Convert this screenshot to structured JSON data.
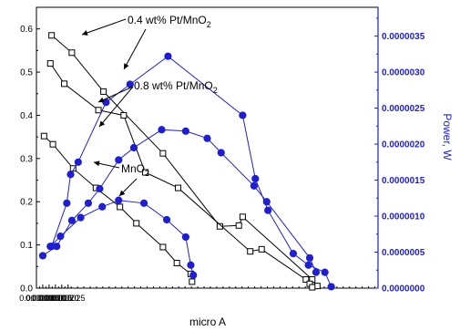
{
  "chart_data": {
    "type": "scatter",
    "x": {
      "label": "micro A",
      "range": [
        0,
        0.00027
      ],
      "ticks": [
        "0.000000",
        "0.000005",
        "0.000010",
        "0.000015",
        "0.000020",
        "0.000025"
      ]
    },
    "y_left": {
      "label": "",
      "range": [
        0,
        0.65
      ],
      "ticks": [
        "0.0",
        "0.1",
        "0.2",
        "0.3",
        "0.4",
        "0.5",
        "0.6"
      ]
    },
    "y_right": {
      "label": "Power, W",
      "range": [
        0,
        3.9e-06
      ],
      "ticks": [
        "0.0000000",
        "0.0000005",
        "0.0000010",
        "0.0000015",
        "0.0000020",
        "0.0000025",
        "0.0000030",
        "0.0000035"
      ]
    },
    "colors": {
      "voltage": "#000000",
      "power": "#1f1fcf"
    },
    "annotations": [
      {
        "main": "0.4 wt% Pt/MnO",
        "sub": "2"
      },
      {
        "main": "0.8 wt% Pt/MnO",
        "sub": "2"
      },
      {
        "main": "MnO",
        "sub": "2"
      }
    ],
    "series": [
      {
        "axis": "left",
        "marker": "square-open",
        "color": "#000000",
        "points": [
          [
            1.2e-05,
            0.585
          ],
          [
            2.8e-05,
            0.545
          ],
          [
            5.3e-05,
            0.455
          ],
          [
            0.0001,
            0.312
          ],
          [
            0.000145,
            0.143
          ],
          [
            0.00016,
            0.145
          ],
          [
            0.000163,
            0.165
          ],
          [
            0.000218,
            0.02
          ],
          [
            0.000222,
            0.005
          ]
        ]
      },
      {
        "axis": "left",
        "marker": "square-open",
        "color": "#000000",
        "points": [
          [
            1.1e-05,
            0.52
          ],
          [
            2.2e-05,
            0.473
          ],
          [
            4.9e-05,
            0.412
          ],
          [
            6.9e-05,
            0.4
          ],
          [
            8.6e-05,
            0.268
          ],
          [
            0.000112,
            0.232
          ],
          [
            0.000169,
            0.085
          ],
          [
            0.000178,
            0.09
          ],
          [
            0.000213,
            0.02
          ],
          [
            0.000216,
            0.01
          ],
          [
            0.000218,
            0.002
          ]
        ]
      },
      {
        "axis": "left",
        "marker": "square-open",
        "color": "#000000",
        "points": [
          [
            6e-06,
            0.352
          ],
          [
            1.3e-05,
            0.333
          ],
          [
            2.9e-05,
            0.277
          ],
          [
            4.7e-05,
            0.232
          ],
          [
            6.6e-05,
            0.188
          ],
          [
            7.9e-05,
            0.15
          ],
          [
            0.0001,
            0.095
          ],
          [
            0.000111,
            0.058
          ],
          [
            0.000122,
            0.033
          ],
          [
            0.000123,
            0.015
          ]
        ]
      },
      {
        "axis": "right",
        "marker": "circle-filled",
        "color": "#1f1fcf",
        "points": [
          [
            1.2e-05,
            5.8e-07
          ],
          [
            2.4e-05,
            1.18e-06
          ],
          [
            2.7e-05,
            1.58e-06
          ],
          [
            3.3e-05,
            1.75e-06
          ],
          [
            5.5e-05,
            2.58e-06
          ],
          [
            7.4e-05,
            2.83e-06
          ],
          [
            0.000104,
            3.22e-06
          ],
          [
            0.000163,
            2.4e-06
          ],
          [
            0.000173,
            1.52e-06
          ],
          [
            0.000183,
            1.08e-06
          ],
          [
            0.000203,
            4.8e-07
          ],
          [
            0.000215,
            3.2e-07
          ],
          [
            0.000228,
            2.2e-07
          ],
          [
            0.000233,
            2e-08
          ]
        ]
      },
      {
        "axis": "right",
        "marker": "circle-filled",
        "color": "#1f1fcf",
        "points": [
          [
            5e-06,
            4.5e-07
          ],
          [
            1.6e-05,
            5.8e-07
          ],
          [
            2.8e-05,
            9.4e-07
          ],
          [
            4.1e-05,
            1.18e-06
          ],
          [
            5e-05,
            1.38e-06
          ],
          [
            6.5e-05,
            1.78e-06
          ],
          [
            7.7e-05,
            1.95e-06
          ],
          [
            9.9e-05,
            2.2e-06
          ],
          [
            0.000118,
            2.18e-06
          ],
          [
            0.000135,
            2.08e-06
          ],
          [
            0.000146,
            1.88e-06
          ],
          [
            0.000172,
            1.42e-06
          ],
          [
            0.000182,
            1.2e-06
          ],
          [
            0.000216,
            4.2e-07
          ],
          [
            0.000221,
            2.2e-07
          ]
        ]
      },
      {
        "axis": "right",
        "marker": "circle-filled",
        "color": "#1f1fcf",
        "points": [
          [
            1.1e-05,
            5.8e-07
          ],
          [
            1.9e-05,
            7.2e-07
          ],
          [
            3.5e-05,
            9.8e-07
          ],
          [
            5.2e-05,
            1.13e-06
          ],
          [
            6.5e-05,
            1.22e-06
          ],
          [
            8.5e-05,
            1.18e-06
          ],
          [
            0.000103,
            9.5e-07
          ],
          [
            0.000118,
            7.1e-07
          ],
          [
            0.000122,
            3.2e-07
          ],
          [
            0.000124,
            1.8e-07
          ]
        ]
      }
    ]
  }
}
